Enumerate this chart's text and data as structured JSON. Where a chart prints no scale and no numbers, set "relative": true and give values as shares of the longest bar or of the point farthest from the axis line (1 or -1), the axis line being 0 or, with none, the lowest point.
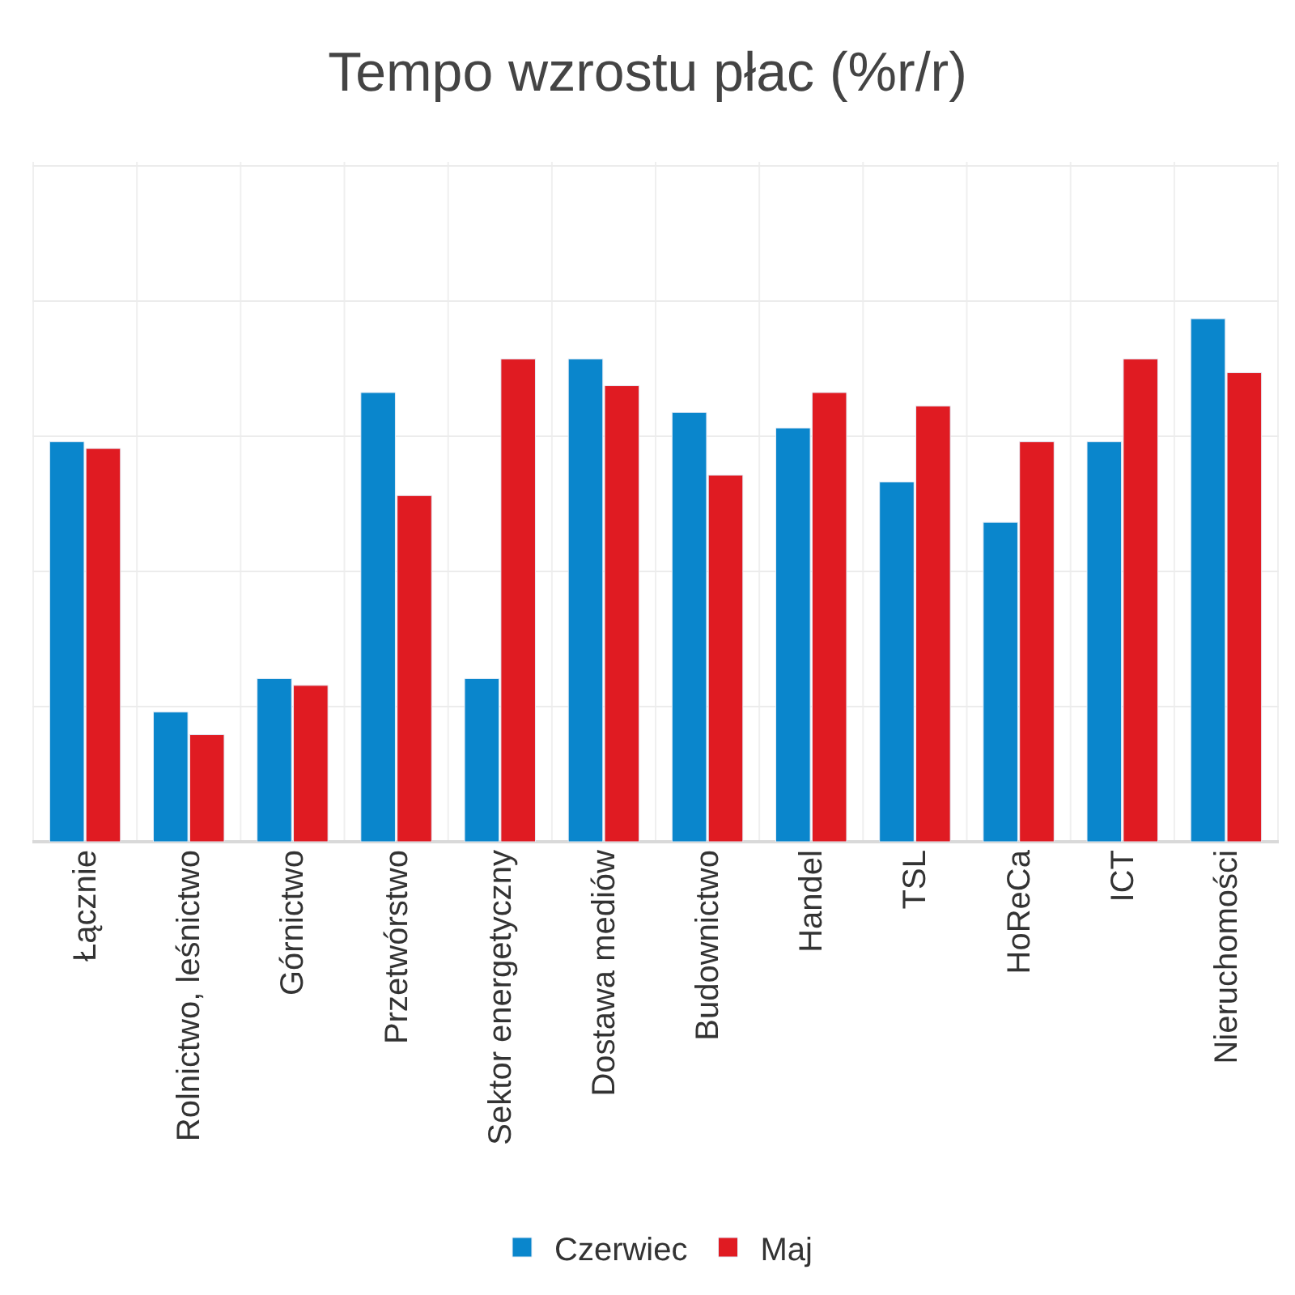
{
  "chart_data": {
    "type": "bar",
    "title": "Tempo wzrostu płac (%r/r)",
    "relative": true,
    "grid": true,
    "legend": "bottom",
    "categories": [
      "Łącznie",
      "Rolnictwo, leśnictwo",
      "Górnictwo",
      "Przetwórstwo",
      "Sektor energetyczny",
      "Dostawa mediów",
      "Budownictwo",
      "Handel",
      "TSL",
      "HoReCa",
      "ICT",
      "Nieruchomości"
    ],
    "series": [
      {
        "name": "Czerwiec",
        "color": "#0a86cc",
        "values": [
          0.765,
          0.248,
          0.312,
          0.859,
          0.312,
          0.923,
          0.821,
          0.791,
          0.688,
          0.611,
          0.765,
          1
        ]
      },
      {
        "name": "Maj",
        "color": "#e01b22",
        "values": [
          0.752,
          0.205,
          0.299,
          0.662,
          0.923,
          0.872,
          0.701,
          0.859,
          0.833,
          0.765,
          0.923,
          0.897
        ]
      }
    ]
  }
}
